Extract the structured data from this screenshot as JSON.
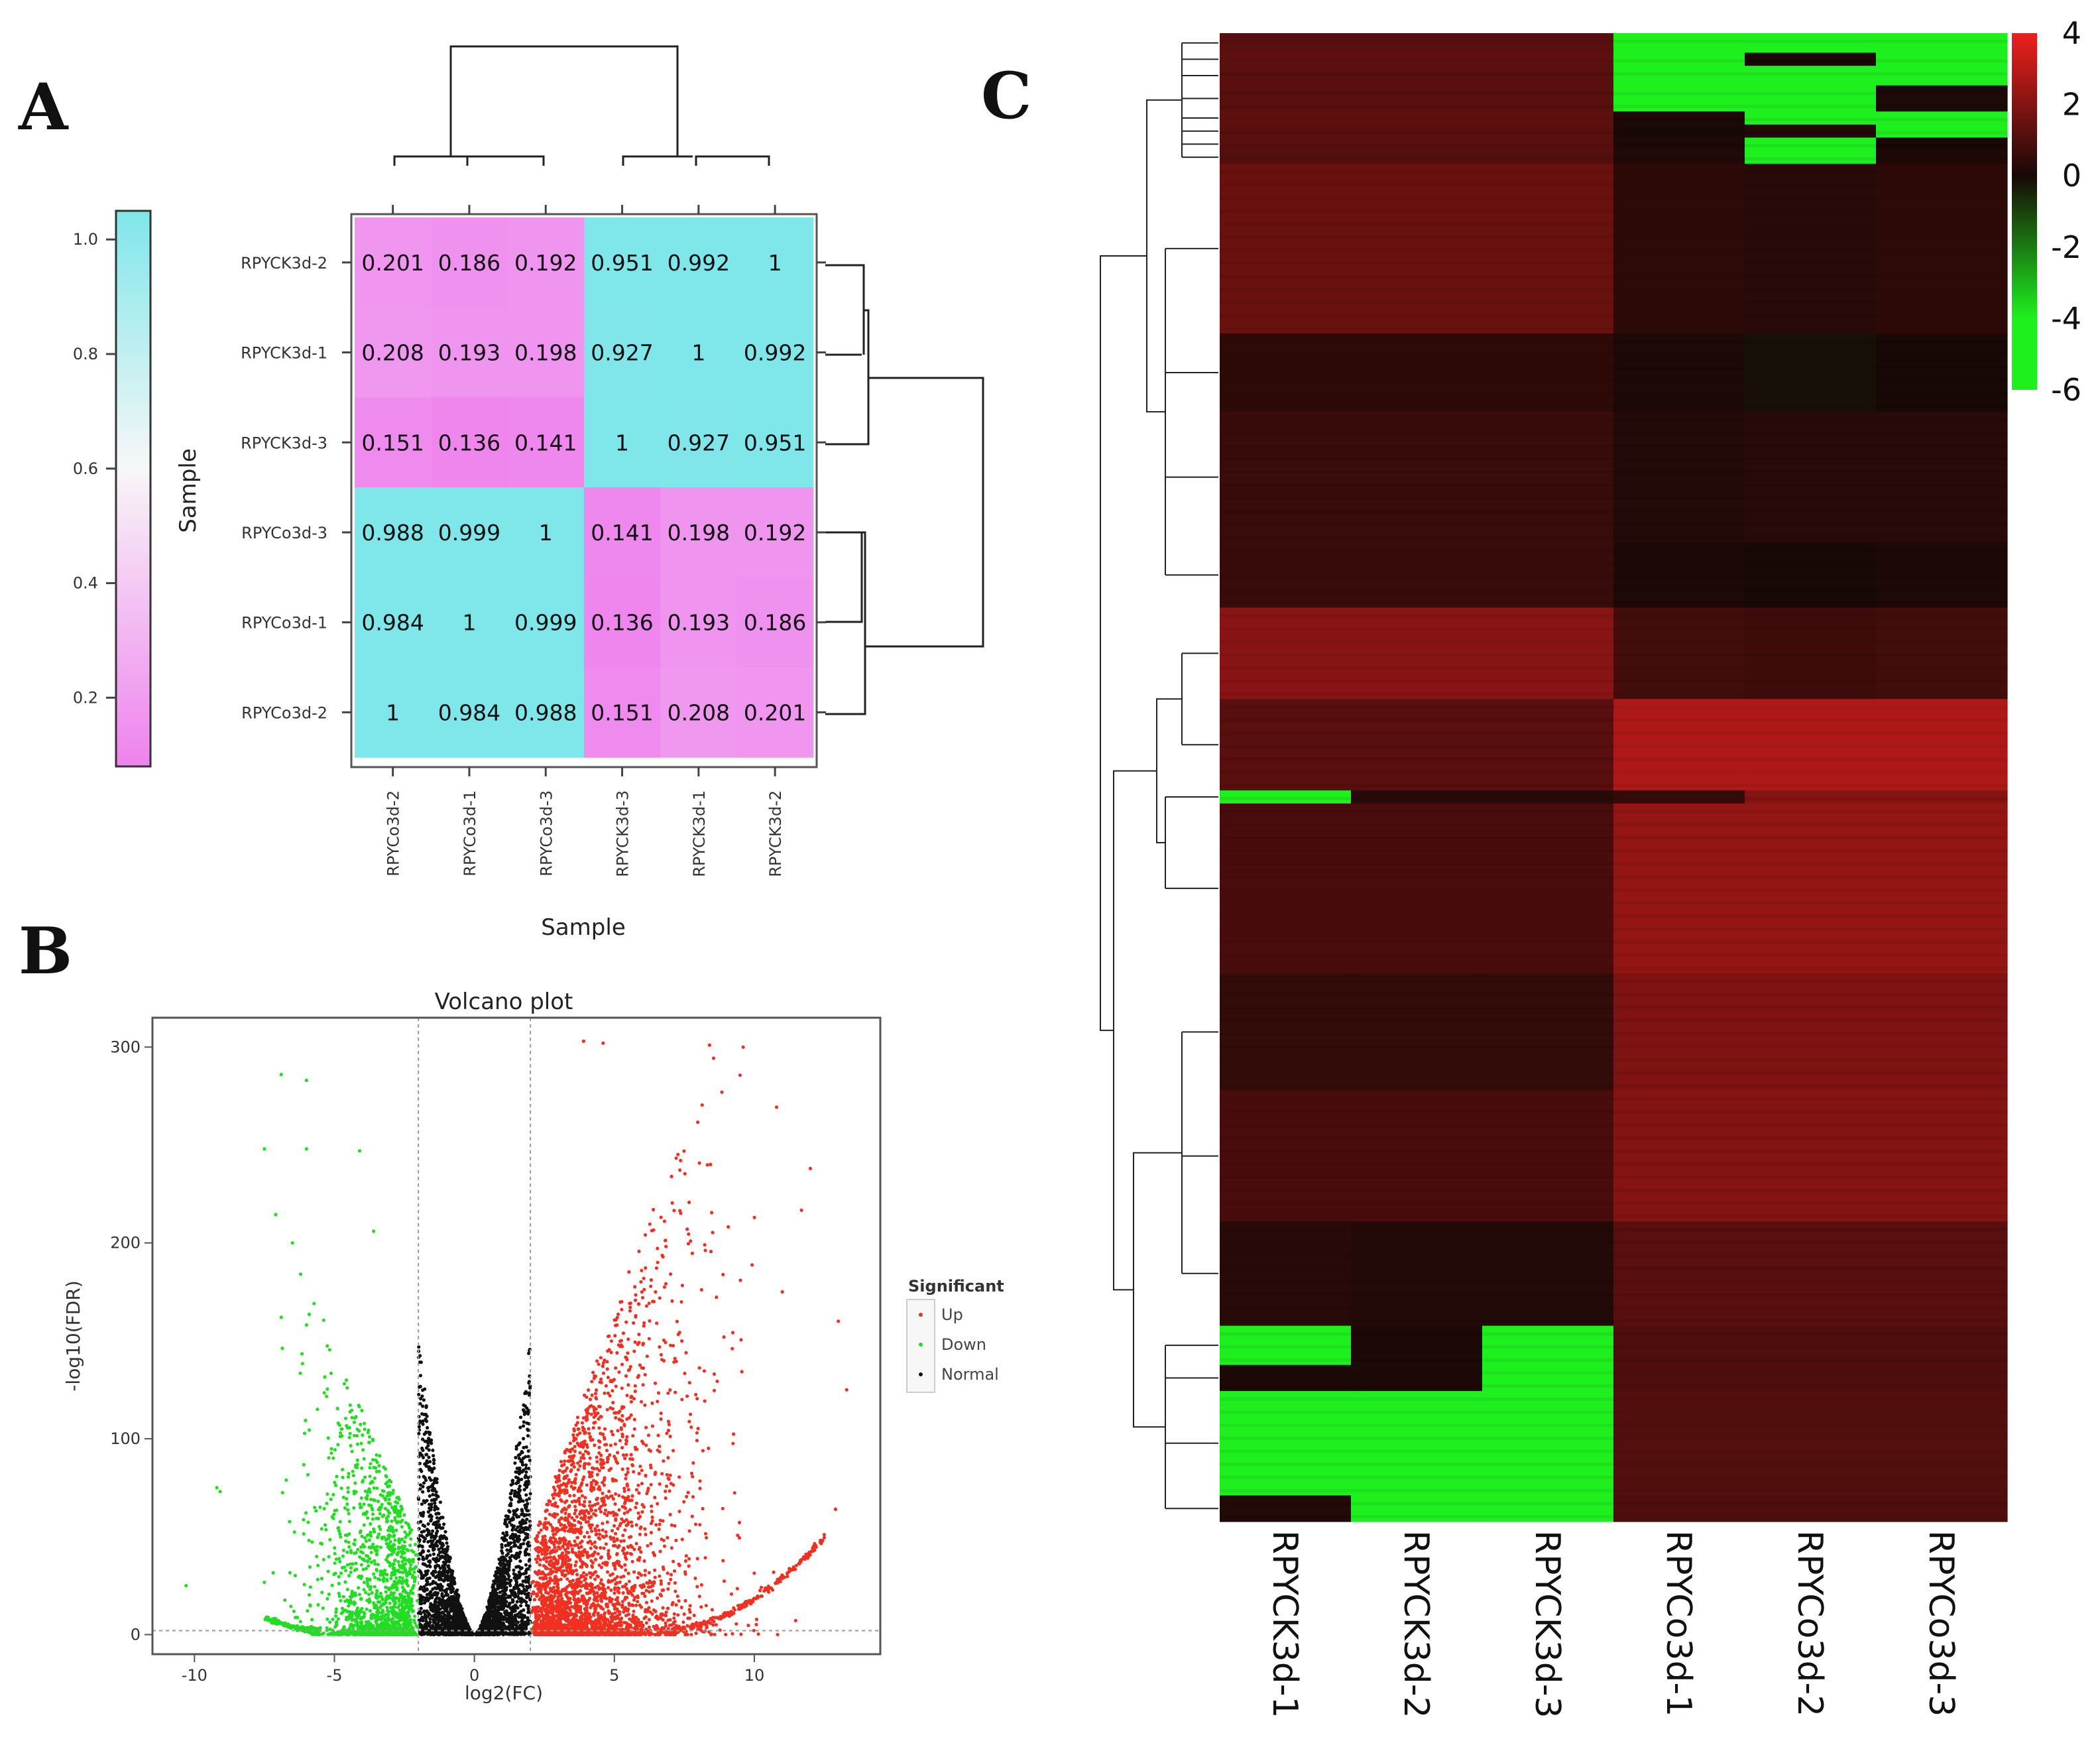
{
  "panels": {
    "a": "A",
    "b": "B",
    "c": "C"
  },
  "chart_data": [
    {
      "type": "heatmap",
      "title": "",
      "xlabel": "Sample",
      "ylabel": "Sample",
      "rows": [
        "RPYCK3d-2",
        "RPYCK3d-1",
        "RPYCK3d-3",
        "RPYCo3d-3",
        "RPYCo3d-1",
        "RPYCo3d-2"
      ],
      "cols": [
        "RPYCo3d-2",
        "RPYCo3d-1",
        "RPYCo3d-3",
        "RPYCK3d-3",
        "RPYCK3d-1",
        "RPYCK3d-2"
      ],
      "values": [
        [
          0.201,
          0.186,
          0.192,
          0.951,
          0.992,
          1
        ],
        [
          0.208,
          0.193,
          0.198,
          0.927,
          1,
          0.992
        ],
        [
          0.151,
          0.136,
          0.141,
          1,
          0.927,
          0.951
        ],
        [
          0.988,
          0.999,
          1,
          0.141,
          0.198,
          0.192
        ],
        [
          0.984,
          1,
          0.999,
          0.136,
          0.193,
          0.186
        ],
        [
          1,
          0.984,
          0.988,
          0.151,
          0.208,
          0.201
        ]
      ],
      "labels": [
        [
          "0.201",
          "0.186",
          "0.192",
          "0.951",
          "0.992",
          "1"
        ],
        [
          "0.208",
          "0.193",
          "0.198",
          "0.927",
          "1",
          "0.992"
        ],
        [
          "0.151",
          "0.136",
          "0.141",
          "1",
          "0.927",
          "0.951"
        ],
        [
          "0.988",
          "0.999",
          "1",
          "0.141",
          "0.198",
          "0.192"
        ],
        [
          "0.984",
          "1",
          "0.999",
          "0.136",
          "0.193",
          "0.186"
        ],
        [
          "1",
          "0.984",
          "0.988",
          "0.151",
          "0.208",
          "0.201"
        ]
      ],
      "colorbar": {
        "ticks": [
          "0.2",
          "0.4",
          "0.6",
          "0.8",
          "1.0"
        ],
        "range": [
          0.08,
          1.05
        ],
        "low_color": "#ee82ee",
        "mid_color": "#f7f7f7",
        "high_color": "#7fe6ea",
        "mid_value": 0.6
      }
    },
    {
      "type": "scatter",
      "title": "Volcano plot",
      "xlabel": "log2(FC)",
      "ylabel": "-log10(FDR)",
      "xlim": [
        -11.5,
        14.5
      ],
      "ylim": [
        -10,
        315
      ],
      "xticks": [
        "-10",
        "-5",
        "0",
        "5",
        "10"
      ],
      "yticks": [
        "0",
        "100",
        "200",
        "300"
      ],
      "thresholds": {
        "fc": [
          -2,
          2
        ],
        "fdr": 2
      },
      "legend": {
        "title": "Significant",
        "entries": [
          "Up",
          "Down",
          "Normal"
        ],
        "placement": "right"
      },
      "series": [
        {
          "name": "Up",
          "color": "#f03020",
          "count": 3200,
          "highlights": [
            [
              3.9,
              303
            ],
            [
              4.6,
              302
            ],
            [
              8.4,
              301
            ],
            [
              9.6,
              300
            ],
            [
              12.0,
              238
            ],
            [
              13.0,
              160
            ],
            [
              13.3,
              125
            ],
            [
              12.9,
              64
            ],
            [
              10.0,
              213
            ],
            [
              11.0,
              175
            ]
          ]
        },
        {
          "name": "Down",
          "color": "#22dd22",
          "count": 1500,
          "highlights": [
            [
              -6.9,
              286
            ],
            [
              -6.0,
              283
            ],
            [
              -7.5,
              248
            ],
            [
              -6.0,
              248
            ],
            [
              -4.1,
              247
            ],
            [
              -6.5,
              200
            ],
            [
              -3.6,
              206
            ],
            [
              -6.9,
              162
            ],
            [
              -9.2,
              75
            ],
            [
              -10.3,
              25
            ]
          ]
        },
        {
          "name": "Normal",
          "color": "#111111",
          "count": 2800
        }
      ]
    },
    {
      "type": "heatmap",
      "title": "",
      "columns": [
        "RPYCK3d-1",
        "RPYCK3d-2",
        "RPYCK3d-3",
        "RPYCo3d-1",
        "RPYCo3d-2",
        "RPYCo3d-3"
      ],
      "colorbar": {
        "ticks": [
          "4",
          "2",
          "0",
          "-2",
          "-4",
          "-6"
        ],
        "range": [
          -6,
          4
        ]
      },
      "row_groups": [
        {
          "rows": 3,
          "values": [
            1.2,
            1.2,
            1.2,
            -6,
            -6,
            -6
          ]
        },
        {
          "rows": 2,
          "values": [
            1.3,
            1.3,
            1.3,
            -6,
            0,
            -6
          ]
        },
        {
          "rows": 3,
          "values": [
            1.2,
            1.2,
            1.2,
            -6,
            -6,
            -6
          ]
        },
        {
          "rows": 4,
          "values": [
            1.2,
            1.2,
            1.2,
            -6,
            -6,
            0.1
          ]
        },
        {
          "rows": 2,
          "values": [
            1.3,
            1.3,
            1.3,
            0.1,
            -6,
            -6
          ]
        },
        {
          "rows": 2,
          "values": [
            1.2,
            1.2,
            1.2,
            0,
            0.2,
            -6
          ]
        },
        {
          "rows": 2,
          "values": [
            1.2,
            1.2,
            1.2,
            0.1,
            -6,
            0
          ]
        },
        {
          "rows": 2,
          "values": [
            1.1,
            1.1,
            1.1,
            0.2,
            -6,
            0.1
          ]
        },
        {
          "rows": 26,
          "values": [
            1.5,
            1.5,
            1.5,
            0.4,
            0.3,
            0.4
          ]
        },
        {
          "rows": 12,
          "values": [
            0.4,
            0.4,
            0.4,
            0.1,
            -0.3,
            0.0
          ]
        },
        {
          "rows": 20,
          "values": [
            0.6,
            0.6,
            0.6,
            0.2,
            0.3,
            0.3
          ]
        },
        {
          "rows": 10,
          "values": [
            0.6,
            0.6,
            0.6,
            0.1,
            0.0,
            0.1
          ]
        },
        {
          "rows": 14,
          "values": [
            2.1,
            2.1,
            2.1,
            0.8,
            0.7,
            0.8
          ]
        },
        {
          "rows": 14,
          "values": [
            1.2,
            1.2,
            1.2,
            2.8,
            2.8,
            2.8
          ]
        },
        {
          "rows": 2,
          "values": [
            -6,
            0.3,
            0.3,
            0.5,
            2.0,
            2.0
          ]
        },
        {
          "rows": 26,
          "values": [
            0.9,
            0.9,
            0.9,
            2.3,
            2.3,
            2.3
          ]
        },
        {
          "rows": 18,
          "values": [
            0.5,
            0.5,
            0.5,
            1.9,
            1.9,
            1.9
          ]
        },
        {
          "rows": 20,
          "values": [
            0.9,
            0.9,
            0.9,
            2.0,
            2.0,
            2.0
          ]
        },
        {
          "rows": 16,
          "values": [
            0.3,
            0.2,
            0.2,
            1.2,
            1.2,
            1.2
          ]
        },
        {
          "rows": 6,
          "values": [
            -6,
            0.1,
            -6,
            1.0,
            1.0,
            1.0
          ]
        },
        {
          "rows": 4,
          "values": [
            0.1,
            0.1,
            -6,
            1.0,
            1.0,
            1.0
          ]
        },
        {
          "rows": 16,
          "values": [
            -6,
            -6,
            -6,
            1.1,
            1.1,
            1.1
          ]
        },
        {
          "rows": 4,
          "values": [
            0.2,
            -6,
            -6,
            1.0,
            1.0,
            1.0
          ]
        }
      ]
    }
  ]
}
